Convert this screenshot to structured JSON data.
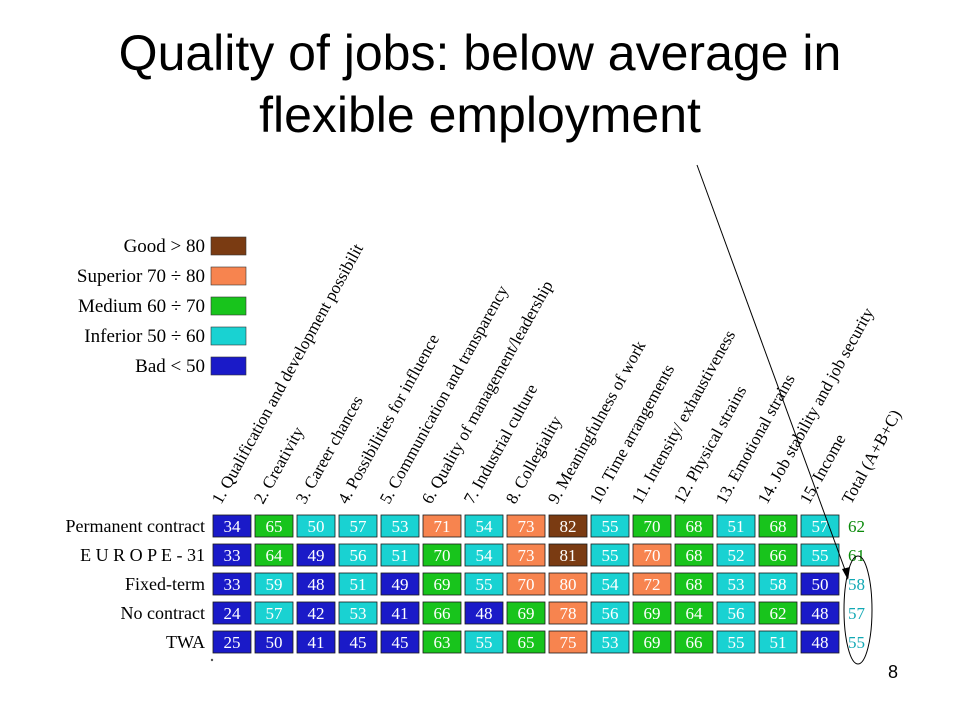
{
  "slide": {
    "title_line1": "Quality of jobs: below average in",
    "title_line2": "flexible employment",
    "page_number": "8"
  },
  "colors": {
    "good": "#7a3b12",
    "superior": "#f7844f",
    "medium": "#18c41c",
    "inferior": "#19d2d2",
    "bad": "#1a1ac8",
    "total_good_text": "#0a8a0a",
    "total_inferior_text": "#11a8b4"
  },
  "chart_data": {
    "type": "heatmap",
    "legend": [
      {
        "label": "Good > 80",
        "class": "good"
      },
      {
        "label": "Superior 70 ÷ 80",
        "class": "superior"
      },
      {
        "label": "Medium 60 ÷ 70",
        "class": "medium"
      },
      {
        "label": "Inferior 50 ÷ 60",
        "class": "inferior"
      },
      {
        "label": "Bad < 50",
        "class": "bad"
      }
    ],
    "columns": [
      "1. Qualification and development possibilit",
      "2. Creativity",
      "3. Career chances",
      "4. Possibilities for influence",
      "5. Communication and transparency",
      "6. Quality of management/leadership",
      "7. Industrial culture",
      "8. Collegiality",
      "9. Meaningfulness of work",
      "10. Time arrangements",
      "11. Intensity/ exhaustiveness",
      "12. Physical strains",
      "13. Emotional strains",
      "14. Job stability and job security",
      "15. Income",
      "Total (A+B+C)"
    ],
    "rows": [
      {
        "label": "Permanent contract",
        "values": [
          34,
          65,
          50,
          57,
          53,
          71,
          54,
          73,
          82,
          55,
          70,
          68,
          51,
          68,
          57
        ],
        "total": 62
      },
      {
        "label": "E U R O P E - 31",
        "values": [
          33,
          64,
          49,
          56,
          51,
          70,
          54,
          73,
          81,
          55,
          70,
          68,
          52,
          66,
          55
        ],
        "total": 61
      },
      {
        "label": "Fixed-term",
        "values": [
          33,
          59,
          48,
          51,
          49,
          69,
          55,
          70,
          80,
          54,
          72,
          68,
          53,
          58,
          50
        ],
        "total": 58
      },
      {
        "label": "No contract",
        "values": [
          24,
          57,
          42,
          53,
          41,
          66,
          48,
          69,
          78,
          56,
          69,
          64,
          56,
          62,
          48
        ],
        "total": 57
      },
      {
        "label": "TWA",
        "values": [
          25,
          50,
          41,
          45,
          45,
          63,
          55,
          65,
          75,
          53,
          69,
          66,
          55,
          51,
          48
        ],
        "total": 55
      }
    ],
    "cell_class": [
      [
        "bad",
        "medium",
        "inferior",
        "inferior",
        "inferior",
        "superior",
        "inferior",
        "superior",
        "good",
        "inferior",
        "medium",
        "medium",
        "inferior",
        "medium",
        "inferior"
      ],
      [
        "bad",
        "medium",
        "bad",
        "inferior",
        "inferior",
        "medium",
        "inferior",
        "superior",
        "good",
        "inferior",
        "superior",
        "medium",
        "inferior",
        "medium",
        "inferior"
      ],
      [
        "bad",
        "inferior",
        "bad",
        "inferior",
        "bad",
        "medium",
        "inferior",
        "superior",
        "superior",
        "inferior",
        "superior",
        "medium",
        "inferior",
        "inferior",
        "bad"
      ],
      [
        "bad",
        "inferior",
        "bad",
        "inferior",
        "bad",
        "medium",
        "bad",
        "medium",
        "superior",
        "inferior",
        "medium",
        "medium",
        "inferior",
        "medium",
        "bad"
      ],
      [
        "bad",
        "bad",
        "bad",
        "bad",
        "bad",
        "medium",
        "inferior",
        "medium",
        "superior",
        "inferior",
        "medium",
        "medium",
        "inferior",
        "inferior",
        "bad"
      ]
    ],
    "total_class": [
      "medium",
      "medium",
      "inferior",
      "inferior",
      "inferior"
    ]
  }
}
